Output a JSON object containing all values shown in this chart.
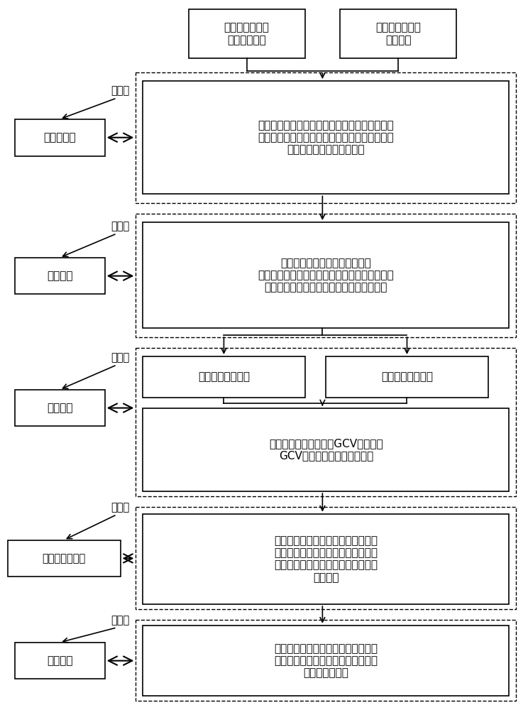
{
  "bg_color": "#ffffff",
  "font_cn": "SimSun",
  "top_box1_text": "热轧带钢的过程\n控制相关数据",
  "top_box2_text": "热轧带钢的变形\n抗力数据",
  "left_labels": [
    "步骤一",
    "步骤二",
    "步骤三",
    "步骤四",
    "步骤五"
  ],
  "left_boxes": [
    "变量预分析",
    "模型设定",
    "模型估计",
    "模型结果及评价",
    "模型修正"
  ],
  "rb1_text": "根据轧制理论的相关机理、先验知识掌握其基本\n情况及分布特征，以确定连接函数和模型的形式\n，确定模型因变量和自变量",
  "rb2_text": "确定模型的基本形式，根据响应\n变量的类型来选择连接函数，依据散点图确定每\n个自变量函数是参数形式还是非参数形式。",
  "rb3l_text": "对连接函数的估计",
  "rb3r_text": "对光滑函数的估计",
  "rb3b_text": "对得到不同的模型计算GCV值，选择\nGCV值最小的模型为最优模型",
  "rb4_text": "得到参数部分的估计值，非参数部分\n光滑函数的拟合数据分析及其偏差分\n析，光滑函数的曲线图和变形抗力的\n预测值。",
  "rb5_text": "结合统计分析方法、轧制理论相关知\n识，在不同角度下验证模型所得结果\n，并进行修改。"
}
